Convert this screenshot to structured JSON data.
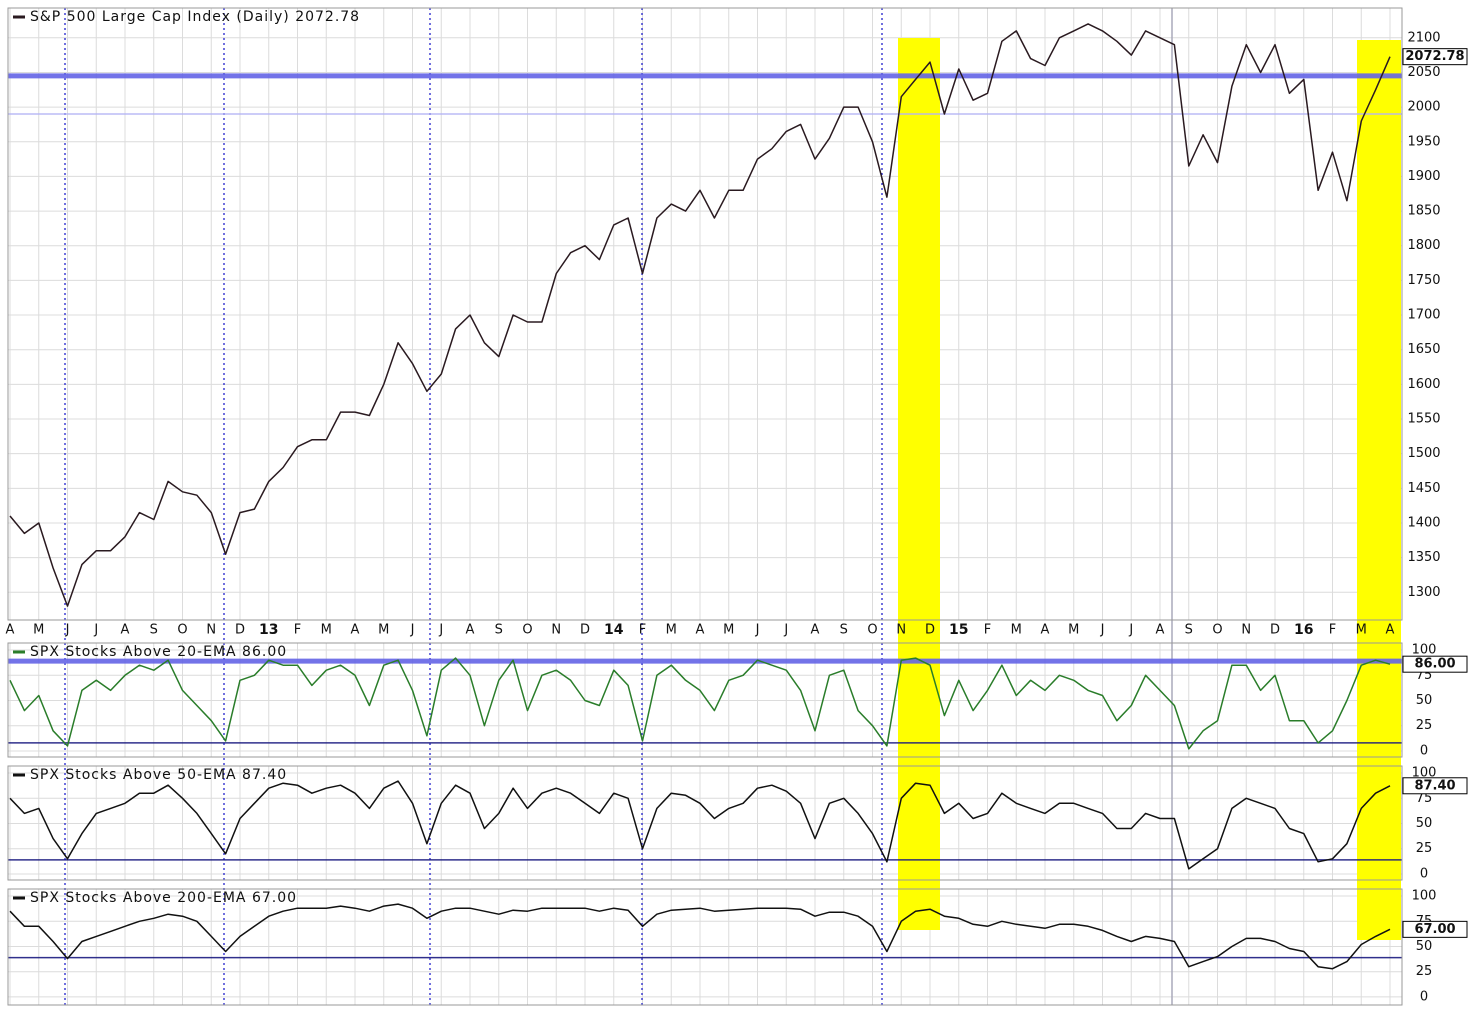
{
  "chart_data": [
    {
      "type": "line",
      "title": "S&P 500 Large Cap Index (Daily) 2072.78",
      "current_label": "2072.78",
      "color": "#2a1a20",
      "categories": [
        "A",
        null,
        "M",
        null,
        "J",
        null,
        "J",
        null,
        "A",
        null,
        "S",
        null,
        "O",
        null,
        "N",
        null,
        "D",
        null,
        "13",
        null,
        "F",
        null,
        "M",
        null,
        "A",
        null,
        "M",
        null,
        "J",
        null,
        "J",
        null,
        "A",
        null,
        "S",
        null,
        "O",
        null,
        "N",
        null,
        "D",
        null,
        "14",
        null,
        "F",
        null,
        "M",
        null,
        "A",
        null,
        "M",
        null,
        "J",
        null,
        "J",
        null,
        "A",
        null,
        "S",
        null,
        "O",
        null,
        "N",
        null,
        "D",
        null,
        "15",
        null,
        "F",
        null,
        "M",
        null,
        "A",
        null,
        "M",
        null,
        "J",
        null,
        "J",
        null,
        "A",
        null,
        "S",
        null,
        "O",
        null,
        "N",
        null,
        "D",
        null,
        "16",
        null,
        "F",
        null,
        "M",
        null,
        "A"
      ],
      "values": [
        1410,
        1385,
        1400,
        1335,
        1280,
        1340,
        1360,
        1360,
        1380,
        1415,
        1405,
        1460,
        1445,
        1440,
        1415,
        1355,
        1415,
        1420,
        1460,
        1480,
        1510,
        1520,
        1520,
        1560,
        1560,
        1555,
        1600,
        1660,
        1630,
        1590,
        1615,
        1680,
        1700,
        1660,
        1640,
        1700,
        1690,
        1690,
        1760,
        1790,
        1800,
        1780,
        1830,
        1840,
        1760,
        1840,
        1860,
        1850,
        1880,
        1840,
        1880,
        1880,
        1925,
        1940,
        1965,
        1975,
        1925,
        1955,
        2000,
        2000,
        1950,
        1870,
        2015,
        2040,
        2065,
        1990,
        2055,
        2010,
        2020,
        2095,
        2110,
        2070,
        2060,
        2100,
        2110,
        2120,
        2110,
        2095,
        2075,
        2110,
        2100,
        2090,
        1915,
        1960,
        1920,
        2030,
        2090,
        2050,
        2090,
        2020,
        2040,
        1880,
        1935,
        1865,
        1980,
        2025,
        2072.78
      ],
      "ylim": [
        1260,
        2143
      ],
      "yticks": [
        1300,
        1350,
        1400,
        1450,
        1500,
        1550,
        1600,
        1650,
        1700,
        1750,
        1800,
        1850,
        1900,
        1950,
        2000,
        2050,
        2100
      ],
      "reference_lines": [
        {
          "value": 2045,
          "color": "#6464e6"
        },
        {
          "value": 1990,
          "color": "#b4b4f6"
        }
      ],
      "grid": true
    },
    {
      "type": "line",
      "title": "SPX Stocks Above 20-EMA 86.00",
      "current_label": "86.00",
      "color": "#2a7d2a",
      "values": [
        70,
        40,
        55,
        20,
        5,
        60,
        70,
        60,
        75,
        85,
        80,
        90,
        60,
        45,
        30,
        10,
        70,
        75,
        90,
        85,
        85,
        65,
        80,
        85,
        75,
        45,
        85,
        90,
        60,
        15,
        80,
        92,
        75,
        25,
        70,
        90,
        40,
        75,
        80,
        70,
        50,
        45,
        80,
        65,
        10,
        75,
        85,
        70,
        60,
        40,
        70,
        75,
        90,
        85,
        80,
        60,
        20,
        75,
        80,
        40,
        25,
        5,
        90,
        92,
        85,
        35,
        70,
        40,
        60,
        85,
        55,
        70,
        60,
        75,
        70,
        60,
        55,
        30,
        45,
        75,
        60,
        45,
        2,
        20,
        30,
        85,
        85,
        60,
        75,
        30,
        30,
        8,
        20,
        50,
        85,
        90,
        86
      ],
      "ylim": [
        -6,
        107
      ],
      "yticks": [
        0,
        25,
        50,
        75,
        100
      ],
      "reference_lines": [
        {
          "value": 89,
          "color": "#6464e6"
        },
        {
          "value": 8,
          "color": "#1a1a80"
        }
      ],
      "grid": true
    },
    {
      "type": "line",
      "title": "SPX Stocks Above 50-EMA 87.40",
      "current_label": "87.40",
      "color": "#111111",
      "values": [
        75,
        60,
        65,
        35,
        15,
        40,
        60,
        65,
        70,
        80,
        80,
        88,
        75,
        60,
        40,
        20,
        55,
        70,
        85,
        90,
        88,
        80,
        85,
        88,
        80,
        65,
        85,
        92,
        70,
        30,
        70,
        88,
        80,
        45,
        60,
        85,
        65,
        80,
        85,
        80,
        70,
        60,
        80,
        75,
        25,
        65,
        80,
        78,
        70,
        55,
        65,
        70,
        85,
        88,
        82,
        70,
        35,
        70,
        75,
        60,
        40,
        12,
        75,
        90,
        88,
        60,
        70,
        55,
        60,
        80,
        70,
        65,
        60,
        70,
        70,
        65,
        60,
        45,
        45,
        60,
        55,
        55,
        5,
        15,
        25,
        65,
        75,
        70,
        65,
        45,
        40,
        12,
        15,
        30,
        65,
        80,
        87.4
      ],
      "ylim": [
        -6,
        107
      ],
      "yticks": [
        0,
        25,
        50,
        75,
        100
      ],
      "reference_lines": [
        {
          "value": 14,
          "color": "#1a1a80"
        }
      ],
      "grid": true
    },
    {
      "type": "line",
      "title": "SPX Stocks Above 200-EMA 67.00",
      "current_label": "67.00",
      "color": "#111111",
      "values": [
        85,
        70,
        70,
        55,
        38,
        55,
        60,
        65,
        70,
        75,
        78,
        82,
        80,
        75,
        60,
        45,
        60,
        70,
        80,
        85,
        88,
        88,
        88,
        90,
        88,
        85,
        90,
        92,
        88,
        78,
        85,
        88,
        88,
        85,
        82,
        86,
        85,
        88,
        88,
        88,
        88,
        85,
        88,
        86,
        70,
        82,
        86,
        87,
        88,
        85,
        86,
        87,
        88,
        88,
        88,
        87,
        80,
        84,
        84,
        80,
        70,
        45,
        75,
        85,
        87,
        80,
        78,
        72,
        70,
        75,
        72,
        70,
        68,
        72,
        72,
        70,
        66,
        60,
        55,
        60,
        58,
        55,
        30,
        35,
        40,
        50,
        58,
        58,
        55,
        48,
        45,
        30,
        28,
        35,
        52,
        60,
        67
      ],
      "ylim": [
        -8,
        107
      ],
      "yticks": [
        0,
        25,
        50,
        75,
        100
      ],
      "reference_lines": [
        {
          "value": 39,
          "color": "#1a1a80"
        }
      ],
      "grid": true
    }
  ]
}
